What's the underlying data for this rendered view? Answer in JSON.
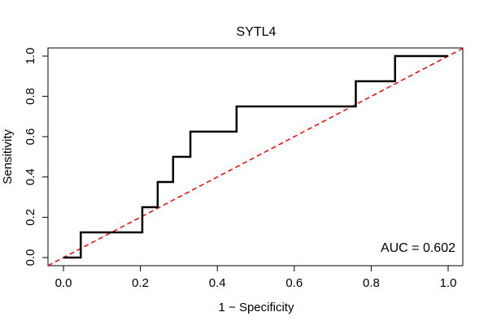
{
  "chart_data": {
    "type": "line",
    "title": "SYTL4",
    "xlabel": "1 − Specificity",
    "ylabel": "Sensitivity",
    "xlim": [
      0,
      1
    ],
    "ylim": [
      0,
      1
    ],
    "xticks": [
      0.0,
      0.2,
      0.4,
      0.6,
      0.8,
      1.0
    ],
    "xtick_labels": [
      "0.0",
      "0.2",
      "0.4",
      "0.6",
      "0.8",
      "1.0"
    ],
    "yticks": [
      0.0,
      0.2,
      0.4,
      0.6,
      0.8,
      1.0
    ],
    "ytick_labels": [
      "0.0",
      "0.2",
      "0.4",
      "0.6",
      "0.8",
      "1.0"
    ],
    "grid": false,
    "annotation": "AUC = 0.602",
    "series": [
      {
        "name": "ROC curve",
        "color": "#000000",
        "style": "solid",
        "x": [
          0.0,
          0.045,
          0.045,
          0.205,
          0.205,
          0.245,
          0.245,
          0.285,
          0.285,
          0.33,
          0.33,
          0.45,
          0.45,
          0.76,
          0.76,
          0.862,
          0.862,
          1.0
        ],
        "y": [
          0.0,
          0.0,
          0.125,
          0.125,
          0.25,
          0.25,
          0.375,
          0.375,
          0.5,
          0.5,
          0.625,
          0.625,
          0.75,
          0.75,
          0.875,
          0.875,
          1.0,
          1.0
        ]
      },
      {
        "name": "Reference line",
        "color": "#ff0000",
        "style": "dashed",
        "x": [
          -0.04,
          1.04
        ],
        "y": [
          -0.04,
          1.04
        ]
      }
    ]
  }
}
